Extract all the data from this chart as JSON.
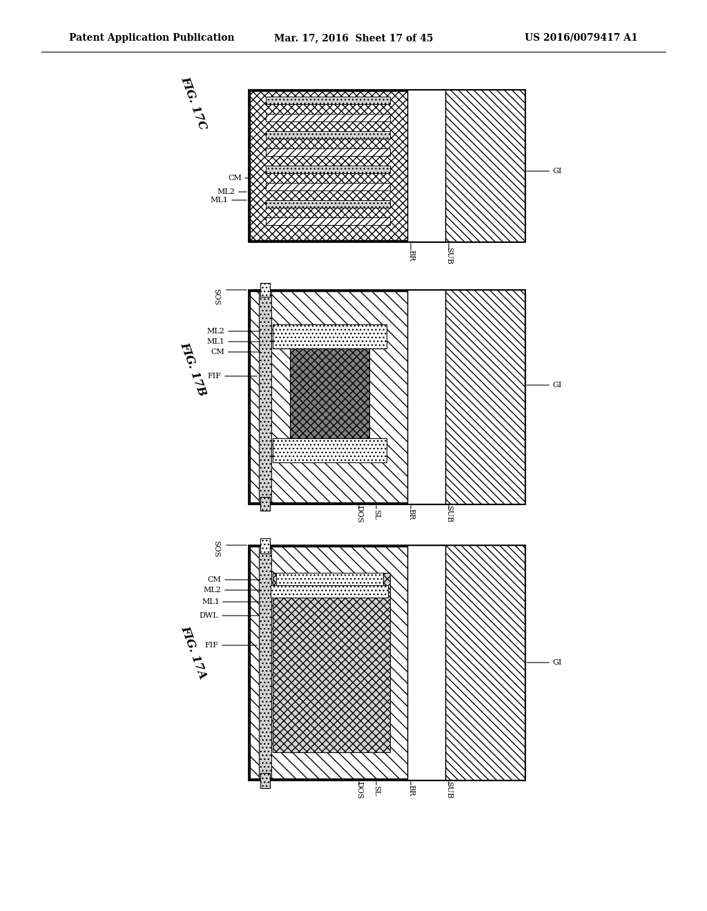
{
  "header_left": "Patent Application Publication",
  "header_center": "Mar. 17, 2016  Sheet 17 of 45",
  "header_right": "US 2016/0079417 A1",
  "fig_labels": [
    "FIG. 17C",
    "FIG. 17B",
    "FIG. 17A"
  ],
  "background_color": "#ffffff",
  "line_color": "#000000",
  "hatch_color": "#000000"
}
